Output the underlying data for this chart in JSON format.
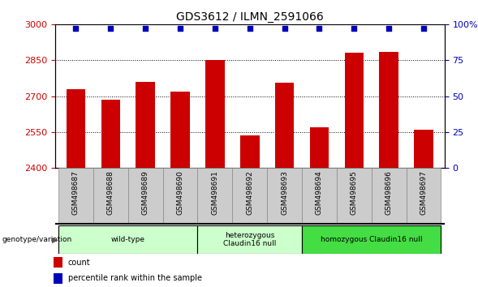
{
  "title": "GDS3612 / ILMN_2591066",
  "categories": [
    "GSM498687",
    "GSM498688",
    "GSM498689",
    "GSM498690",
    "GSM498691",
    "GSM498692",
    "GSM498693",
    "GSM498694",
    "GSM498695",
    "GSM498696",
    "GSM498697"
  ],
  "bar_values": [
    2730,
    2685,
    2760,
    2720,
    2850,
    2535,
    2755,
    2570,
    2880,
    2885,
    2560
  ],
  "percentile_values": [
    97,
    97,
    97,
    97,
    97,
    97,
    97,
    97,
    97,
    97,
    97
  ],
  "ylim_left": [
    2400,
    3000
  ],
  "ylim_right": [
    0,
    100
  ],
  "yticks_left": [
    2400,
    2550,
    2700,
    2850,
    3000
  ],
  "yticks_right": [
    0,
    25,
    50,
    75,
    100
  ],
  "ytick_labels_right": [
    "0",
    "25",
    "50",
    "75",
    "100%"
  ],
  "bar_color": "#cc0000",
  "percentile_color": "#0000bb",
  "grid_color": "#000000",
  "bg_color": "#ffffff",
  "group_configs": [
    {
      "indices": [
        0,
        1,
        2,
        3
      ],
      "label": "wild-type",
      "color": "#ccffcc"
    },
    {
      "indices": [
        4,
        5,
        6
      ],
      "label": "heterozygous\nClaudin16 null",
      "color": "#ccffcc"
    },
    {
      "indices": [
        7,
        8,
        9,
        10
      ],
      "label": "homozygous Claudin16 null",
      "color": "#44dd44"
    }
  ],
  "group_label_prefix": "genotype/variation",
  "legend_count_label": "count",
  "legend_percentile_label": "percentile rank within the sample",
  "tick_label_color_left": "#cc0000",
  "tick_label_color_right": "#0000bb",
  "xlabel_cell_color": "#cccccc",
  "xlabel_cell_edge": "#888888"
}
